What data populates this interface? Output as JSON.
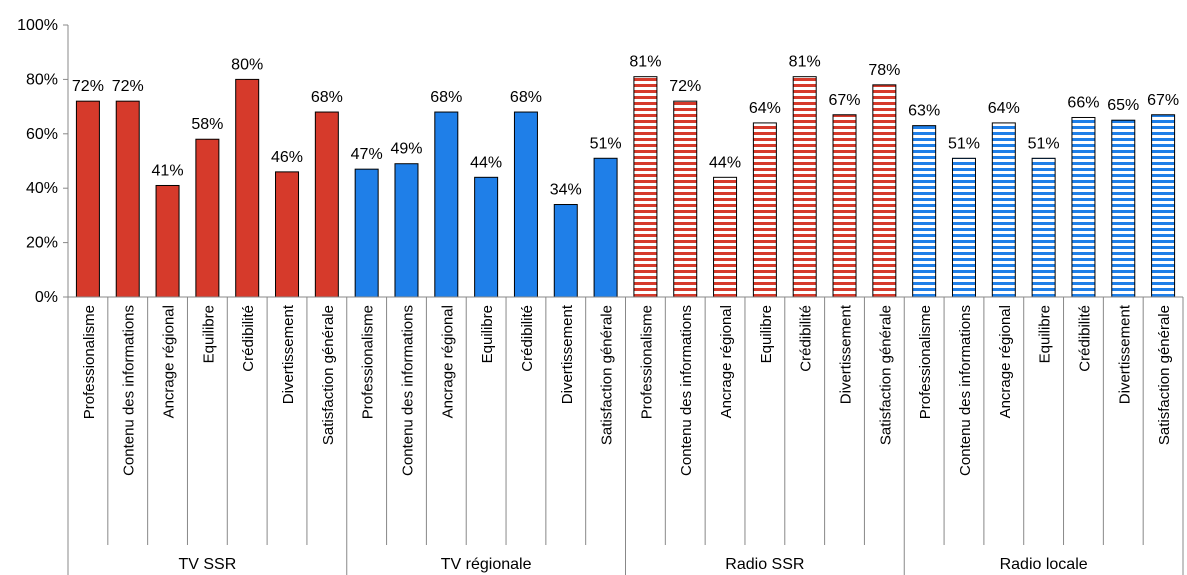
{
  "chart_data": {
    "type": "bar",
    "ylim": [
      0,
      100
    ],
    "yticks": [
      "0%",
      "20%",
      "40%",
      "60%",
      "80%",
      "100%"
    ],
    "grid": false,
    "legend": "none",
    "categories": [
      "Professionalisme",
      "Contenu des informations",
      "Ancrage régional",
      "Equilibre",
      "Crédibilité",
      "Divertissement",
      "Satisfaction générale"
    ],
    "groups": [
      {
        "name": "TV SSR",
        "color": "#d63a2b",
        "pattern": "solid",
        "values": [
          72,
          72,
          41,
          58,
          80,
          46,
          68
        ],
        "labels": [
          "72%",
          "72%",
          "41%",
          "58%",
          "80%",
          "46%",
          "68%"
        ]
      },
      {
        "name": "TV régionale",
        "color": "#1f7fe8",
        "pattern": "solid",
        "values": [
          47,
          49,
          68,
          44,
          68,
          34,
          51
        ],
        "labels": [
          "47%",
          "49%",
          "68%",
          "44%",
          "68%",
          "34%",
          "51%"
        ]
      },
      {
        "name": "Radio SSR",
        "color": "#d63a2b",
        "pattern": "horizontal-stripes",
        "values": [
          81,
          72,
          44,
          64,
          81,
          67,
          78
        ],
        "labels": [
          "81%",
          "72%",
          "44%",
          "64%",
          "81%",
          "67%",
          "78%"
        ]
      },
      {
        "name": "Radio locale",
        "color": "#1f7fe8",
        "pattern": "horizontal-stripes",
        "values": [
          63,
          51,
          64,
          51,
          66,
          65,
          67
        ],
        "labels": [
          "63%",
          "51%",
          "64%",
          "51%",
          "66%",
          "65%",
          "67%"
        ]
      }
    ]
  }
}
